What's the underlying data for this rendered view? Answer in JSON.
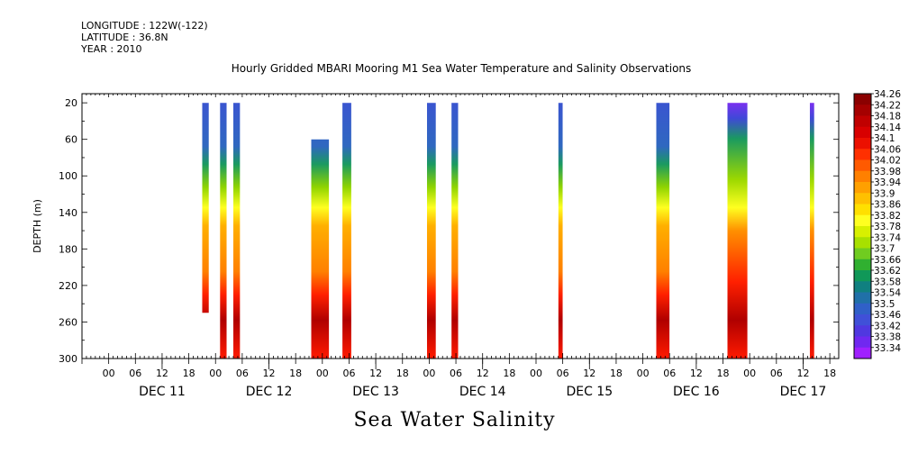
{
  "header": {
    "longitude": "LONGITUDE : 122W(-122)",
    "latitude": "LATITUDE : 36.8N",
    "year": "YEAR : 2010"
  },
  "chart_data": {
    "type": "heatmap",
    "title": "Hourly Gridded MBARI Mooring M1 Sea Water Temperature and Salinity Observations",
    "bottom_title": "Sea Water Salinity",
    "ylabel": "DEPTH (m)",
    "xlabel": "",
    "y_axis": {
      "ticks": [
        20,
        60,
        100,
        140,
        180,
        220,
        260,
        300
      ],
      "range": [
        10,
        300
      ],
      "inverted": true
    },
    "x_axis": {
      "hour_ticks": [
        "00",
        "06",
        "12",
        "18",
        "00",
        "06",
        "12",
        "18",
        "00",
        "06",
        "12",
        "18",
        "00",
        "06",
        "12",
        "18",
        "00",
        "06",
        "12",
        "18",
        "00",
        "06",
        "12",
        "18",
        "00",
        "06",
        "12",
        "18"
      ],
      "day_labels": [
        "DEC 11",
        "DEC 12",
        "DEC 13",
        "DEC 14",
        "DEC 15",
        "DEC 16",
        "DEC 17"
      ],
      "range_hours": [
        -6,
        164
      ]
    },
    "colorbar": {
      "levels": [
        "34.26",
        "34.22",
        "34.18",
        "34.14",
        "34.1",
        "34.06",
        "34.02",
        "33.98",
        "33.94",
        "33.9",
        "33.86",
        "33.82",
        "33.78",
        "33.74",
        "33.7",
        "33.66",
        "33.62",
        "33.58",
        "33.54",
        "33.5",
        "33.46",
        "33.42",
        "33.38",
        "33.34"
      ],
      "colors": [
        "#8b0000",
        "#a50000",
        "#c00000",
        "#d80000",
        "#ec1000",
        "#ff3000",
        "#ff5a00",
        "#ff8000",
        "#ffa000",
        "#ffc000",
        "#ffe000",
        "#ffff20",
        "#d8f000",
        "#a8e000",
        "#70cc20",
        "#30b030",
        "#109858",
        "#108080",
        "#2070a8",
        "#3060c8",
        "#4050d8",
        "#5038e0",
        "#7028f0",
        "#a020ff"
      ]
    },
    "bars": [
      {
        "start_hour": 21,
        "end_hour": 22.5,
        "depth_top": 20,
        "depth_bottom": 250
      },
      {
        "start_hour": 25,
        "end_hour": 26.5,
        "depth_top": 20,
        "depth_bottom": 300
      },
      {
        "start_hour": 28,
        "end_hour": 29.5,
        "depth_top": 20,
        "depth_bottom": 300
      },
      {
        "start_hour": 45.5,
        "end_hour": 49.5,
        "depth_top": 60,
        "depth_bottom": 300
      },
      {
        "start_hour": 52.5,
        "end_hour": 54.5,
        "depth_top": 20,
        "depth_bottom": 300
      },
      {
        "start_hour": 71.5,
        "end_hour": 73.5,
        "depth_top": 20,
        "depth_bottom": 300
      },
      {
        "start_hour": 77,
        "end_hour": 78.5,
        "depth_top": 20,
        "depth_bottom": 300
      },
      {
        "start_hour": 101,
        "end_hour": 102,
        "depth_top": 20,
        "depth_bottom": 300
      },
      {
        "start_hour": 123,
        "end_hour": 126,
        "depth_top": 20,
        "depth_bottom": 300
      },
      {
        "start_hour": 139,
        "end_hour": 143.5,
        "depth_top": 20,
        "depth_bottom": 300
      },
      {
        "start_hour": 157.5,
        "end_hour": 158.5,
        "depth_top": 20,
        "depth_bottom": 300
      }
    ]
  }
}
